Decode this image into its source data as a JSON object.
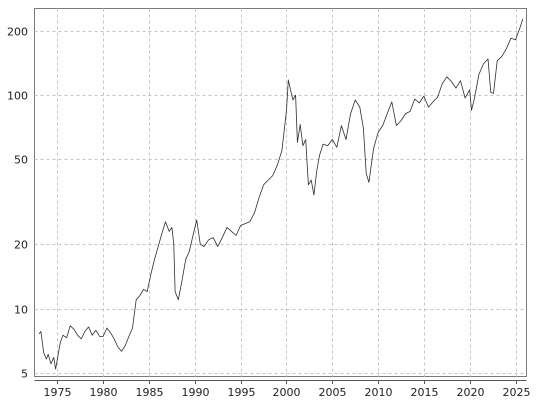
{
  "chart_data": {
    "type": "line",
    "title": "",
    "xlabel": "",
    "ylabel": "",
    "y_scale": "log",
    "xlim": [
      1972.5,
      2026.2
    ],
    "ylim": [
      4.8,
      255
    ],
    "grid": true,
    "legend": "none",
    "line_color": "#2e2e2e",
    "x_ticks": [
      1975,
      1980,
      1985,
      1990,
      1995,
      2000,
      2005,
      2010,
      2015,
      2020,
      2025
    ],
    "x_tick_labels": [
      "1975",
      "1980",
      "1985",
      "1990",
      "1995",
      "2000",
      "2005",
      "2010",
      "2015",
      "2020",
      "2025"
    ],
    "y_ticks": [
      5,
      10,
      20,
      50,
      100,
      200
    ],
    "y_tick_labels": [
      "5",
      "10",
      "20",
      "50",
      "100",
      "200"
    ],
    "series": [
      {
        "x": [
          1973.0,
          1973.2,
          1973.5,
          1973.8,
          1974.0,
          1974.3,
          1974.6,
          1974.8,
          1975.0,
          1975.3,
          1975.6,
          1976.0,
          1976.4,
          1976.8,
          1977.2,
          1977.6,
          1978.0,
          1978.4,
          1978.8,
          1979.2,
          1979.6,
          1980.0,
          1980.4,
          1980.8,
          1981.2,
          1981.6,
          1982.0,
          1982.4,
          1982.8,
          1983.2,
          1983.6,
          1984.0,
          1984.4,
          1984.8,
          1985.2,
          1985.6,
          1986.0,
          1986.4,
          1986.8,
          1987.2,
          1987.5,
          1987.7,
          1987.85,
          1988.2,
          1988.6,
          1989.0,
          1989.4,
          1989.8,
          1990.2,
          1990.6,
          1991.0,
          1991.5,
          1992.0,
          1992.5,
          1993.0,
          1993.5,
          1994.0,
          1994.5,
          1995.0,
          1995.5,
          1996.0,
          1996.5,
          1997.0,
          1997.5,
          1998.0,
          1998.5,
          1999.0,
          1999.5,
          2000.0,
          2000.2,
          2000.4,
          2000.7,
          2001.0,
          2001.2,
          2001.5,
          2001.8,
          2002.1,
          2002.4,
          2002.7,
          2003.0,
          2003.3,
          2003.6,
          2004.0,
          2004.5,
          2005.0,
          2005.5,
          2006.0,
          2006.5,
          2007.0,
          2007.5,
          2008.0,
          2008.4,
          2008.7,
          2009.0,
          2009.2,
          2009.5,
          2010.0,
          2010.5,
          2011.0,
          2011.5,
          2012.0,
          2012.5,
          2013.0,
          2013.5,
          2014.0,
          2014.5,
          2015.0,
          2015.5,
          2016.0,
          2016.5,
          2017.0,
          2017.5,
          2018.0,
          2018.5,
          2019.0,
          2019.5,
          2020.0,
          2020.2,
          2020.5,
          2021.0,
          2021.5,
          2022.0,
          2022.3,
          2022.6,
          2023.0,
          2023.5,
          2024.0,
          2024.5,
          2025.0,
          2025.5,
          2025.8
        ],
        "y": [
          7.6,
          7.8,
          6.2,
          5.8,
          6.1,
          5.5,
          5.9,
          5.2,
          5.8,
          6.9,
          7.5,
          7.3,
          8.3,
          8.0,
          7.5,
          7.2,
          7.8,
          8.2,
          7.5,
          7.9,
          7.4,
          7.4,
          8.1,
          7.7,
          7.2,
          6.6,
          6.3,
          6.7,
          7.4,
          8.1,
          11.0,
          11.5,
          12.3,
          12.0,
          14.5,
          17.0,
          19.5,
          22.5,
          25.5,
          23.0,
          24.0,
          20.0,
          12.0,
          11.0,
          13.5,
          17.0,
          18.5,
          22.0,
          26.0,
          20.0,
          19.5,
          21.0,
          21.5,
          19.5,
          21.5,
          24.0,
          23.0,
          22.0,
          24.5,
          25.0,
          25.5,
          28.0,
          33.0,
          38.0,
          40.0,
          42.0,
          47.0,
          55.0,
          85.0,
          118.0,
          108.0,
          95.0,
          100.0,
          60.0,
          73.0,
          58.0,
          62.0,
          38.0,
          40.0,
          34.0,
          44.0,
          52.0,
          59.0,
          58.0,
          62.0,
          57.0,
          72.0,
          62.0,
          82.0,
          95.0,
          88.0,
          70.0,
          43.0,
          39.0,
          45.0,
          56.0,
          67.0,
          72.0,
          82.0,
          93.0,
          72.0,
          76.0,
          82.0,
          84.0,
          96.0,
          92.0,
          99.0,
          88.0,
          93.0,
          98.0,
          113.0,
          122.0,
          116.0,
          108.0,
          117.0,
          97.0,
          106.0,
          85.0,
          96.0,
          125.0,
          140.0,
          148.0,
          103.0,
          102.0,
          145.0,
          152.0,
          165.0,
          185.0,
          182.0,
          208.0,
          228.0
        ]
      }
    ]
  }
}
